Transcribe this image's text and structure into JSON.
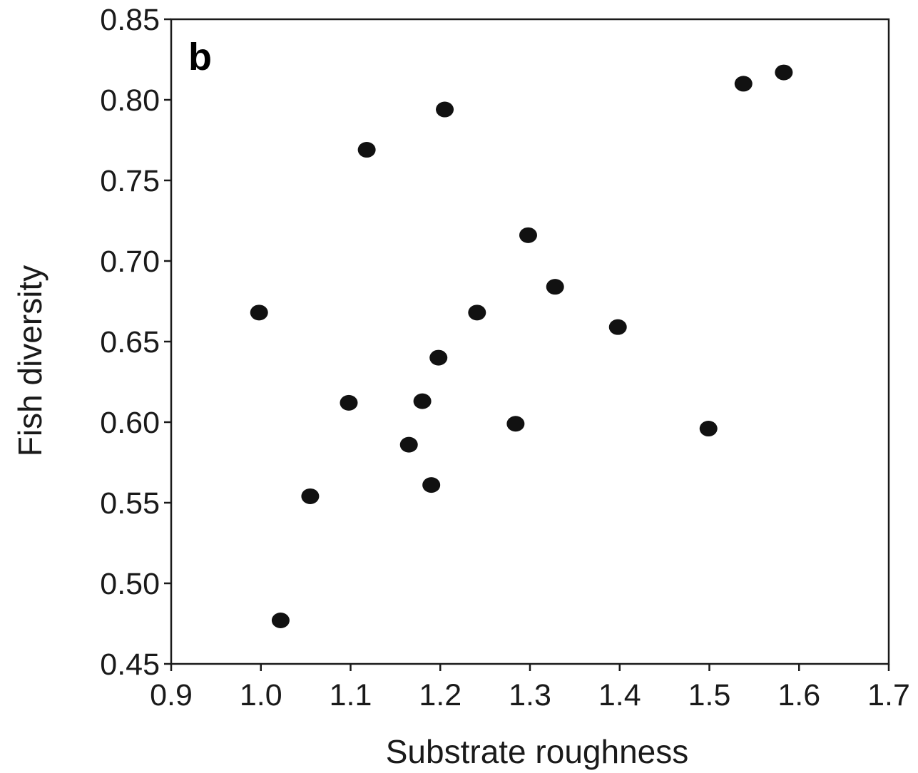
{
  "chart_data": {
    "type": "scatter",
    "panel_label": "b",
    "xlabel": "Substrate roughness",
    "ylabel": "Fish diversity",
    "xlim": [
      0.9,
      1.7
    ],
    "ylim": [
      0.45,
      0.85
    ],
    "xticks": [
      "0.9",
      "1.0",
      "1.1",
      "1.2",
      "1.3",
      "1.4",
      "1.5",
      "1.6",
      "1.7"
    ],
    "yticks": [
      "0.45",
      "0.50",
      "0.55",
      "0.60",
      "0.65",
      "0.70",
      "0.75",
      "0.80",
      "0.85"
    ],
    "grid": false,
    "legend": "none",
    "marker_color": "#111111",
    "points": [
      {
        "x": 0.998,
        "y": 0.668
      },
      {
        "x": 1.022,
        "y": 0.477
      },
      {
        "x": 1.055,
        "y": 0.554
      },
      {
        "x": 1.098,
        "y": 0.612
      },
      {
        "x": 1.118,
        "y": 0.769
      },
      {
        "x": 1.165,
        "y": 0.586
      },
      {
        "x": 1.18,
        "y": 0.613
      },
      {
        "x": 1.19,
        "y": 0.561
      },
      {
        "x": 1.198,
        "y": 0.64
      },
      {
        "x": 1.205,
        "y": 0.794
      },
      {
        "x": 1.241,
        "y": 0.668
      },
      {
        "x": 1.284,
        "y": 0.599
      },
      {
        "x": 1.298,
        "y": 0.716
      },
      {
        "x": 1.328,
        "y": 0.684
      },
      {
        "x": 1.398,
        "y": 0.659
      },
      {
        "x": 1.499,
        "y": 0.596
      },
      {
        "x": 1.538,
        "y": 0.81
      },
      {
        "x": 1.583,
        "y": 0.817
      }
    ]
  }
}
